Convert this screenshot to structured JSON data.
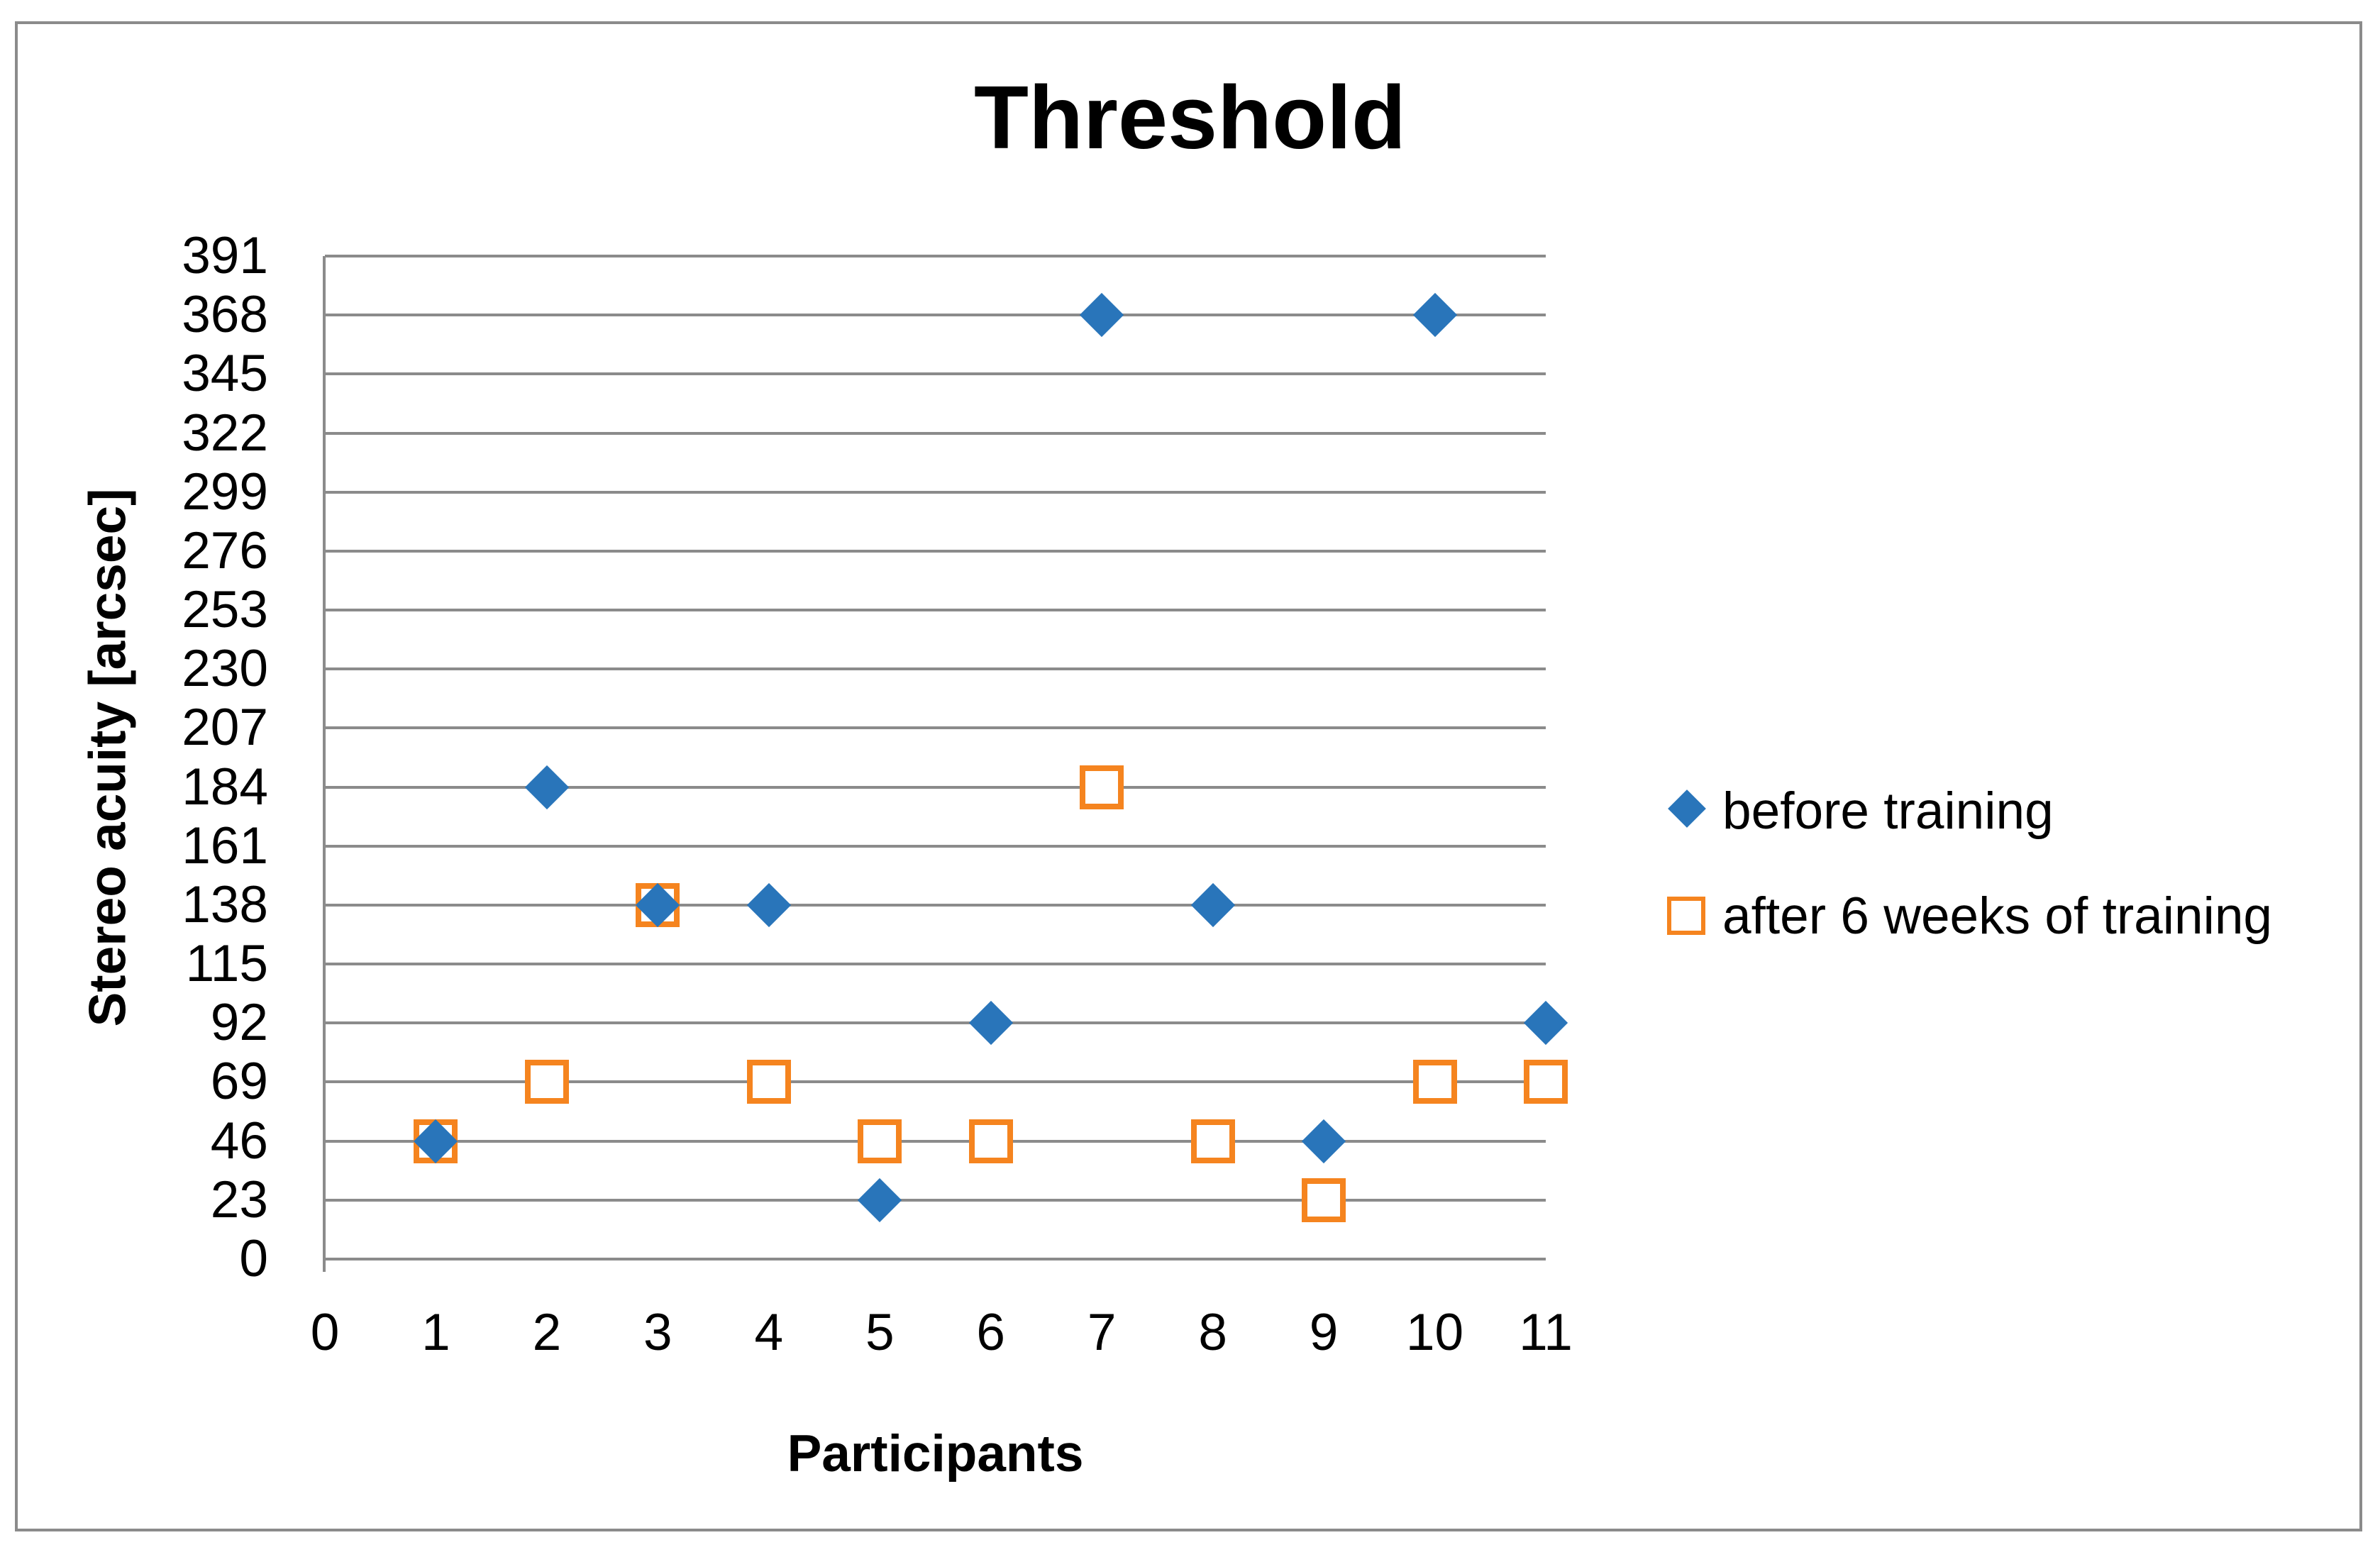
{
  "chart_data": {
    "type": "scatter",
    "title": "Threshold",
    "xlabel": "Participants",
    "ylabel": "Stereo acuity [arcsec]",
    "xlim": [
      0,
      11
    ],
    "ylim": [
      0,
      391
    ],
    "x_ticks": [
      0,
      1,
      2,
      3,
      4,
      5,
      6,
      7,
      8,
      9,
      10,
      11
    ],
    "y_ticks": [
      0,
      23,
      46,
      69,
      92,
      115,
      138,
      161,
      184,
      207,
      230,
      253,
      276,
      299,
      322,
      345,
      368,
      391
    ],
    "grid": "horizontal",
    "legend_position": "right-middle",
    "series": [
      {
        "name": "before training",
        "marker": "filled-diamond",
        "color": "#2975BA",
        "x": [
          1,
          2,
          3,
          4,
          5,
          6,
          7,
          8,
          9,
          10,
          11
        ],
        "y": [
          46,
          184,
          138,
          138,
          23,
          92,
          368,
          138,
          46,
          368,
          92
        ]
      },
      {
        "name": "after 6 weeks of training",
        "marker": "open-square",
        "color": "#F5841F",
        "fill": "#FFFFFF",
        "x": [
          1,
          2,
          3,
          4,
          5,
          6,
          7,
          8,
          9,
          10,
          11
        ],
        "y": [
          46,
          69,
          138,
          69,
          46,
          46,
          184,
          46,
          23,
          69,
          69
        ]
      }
    ]
  },
  "colors": {
    "gridline": "#8B8B8B",
    "axis_line": "#8B8B8B",
    "chart_border": "#8B8B8B",
    "text": "#000000",
    "background": "#FFFFFF"
  }
}
